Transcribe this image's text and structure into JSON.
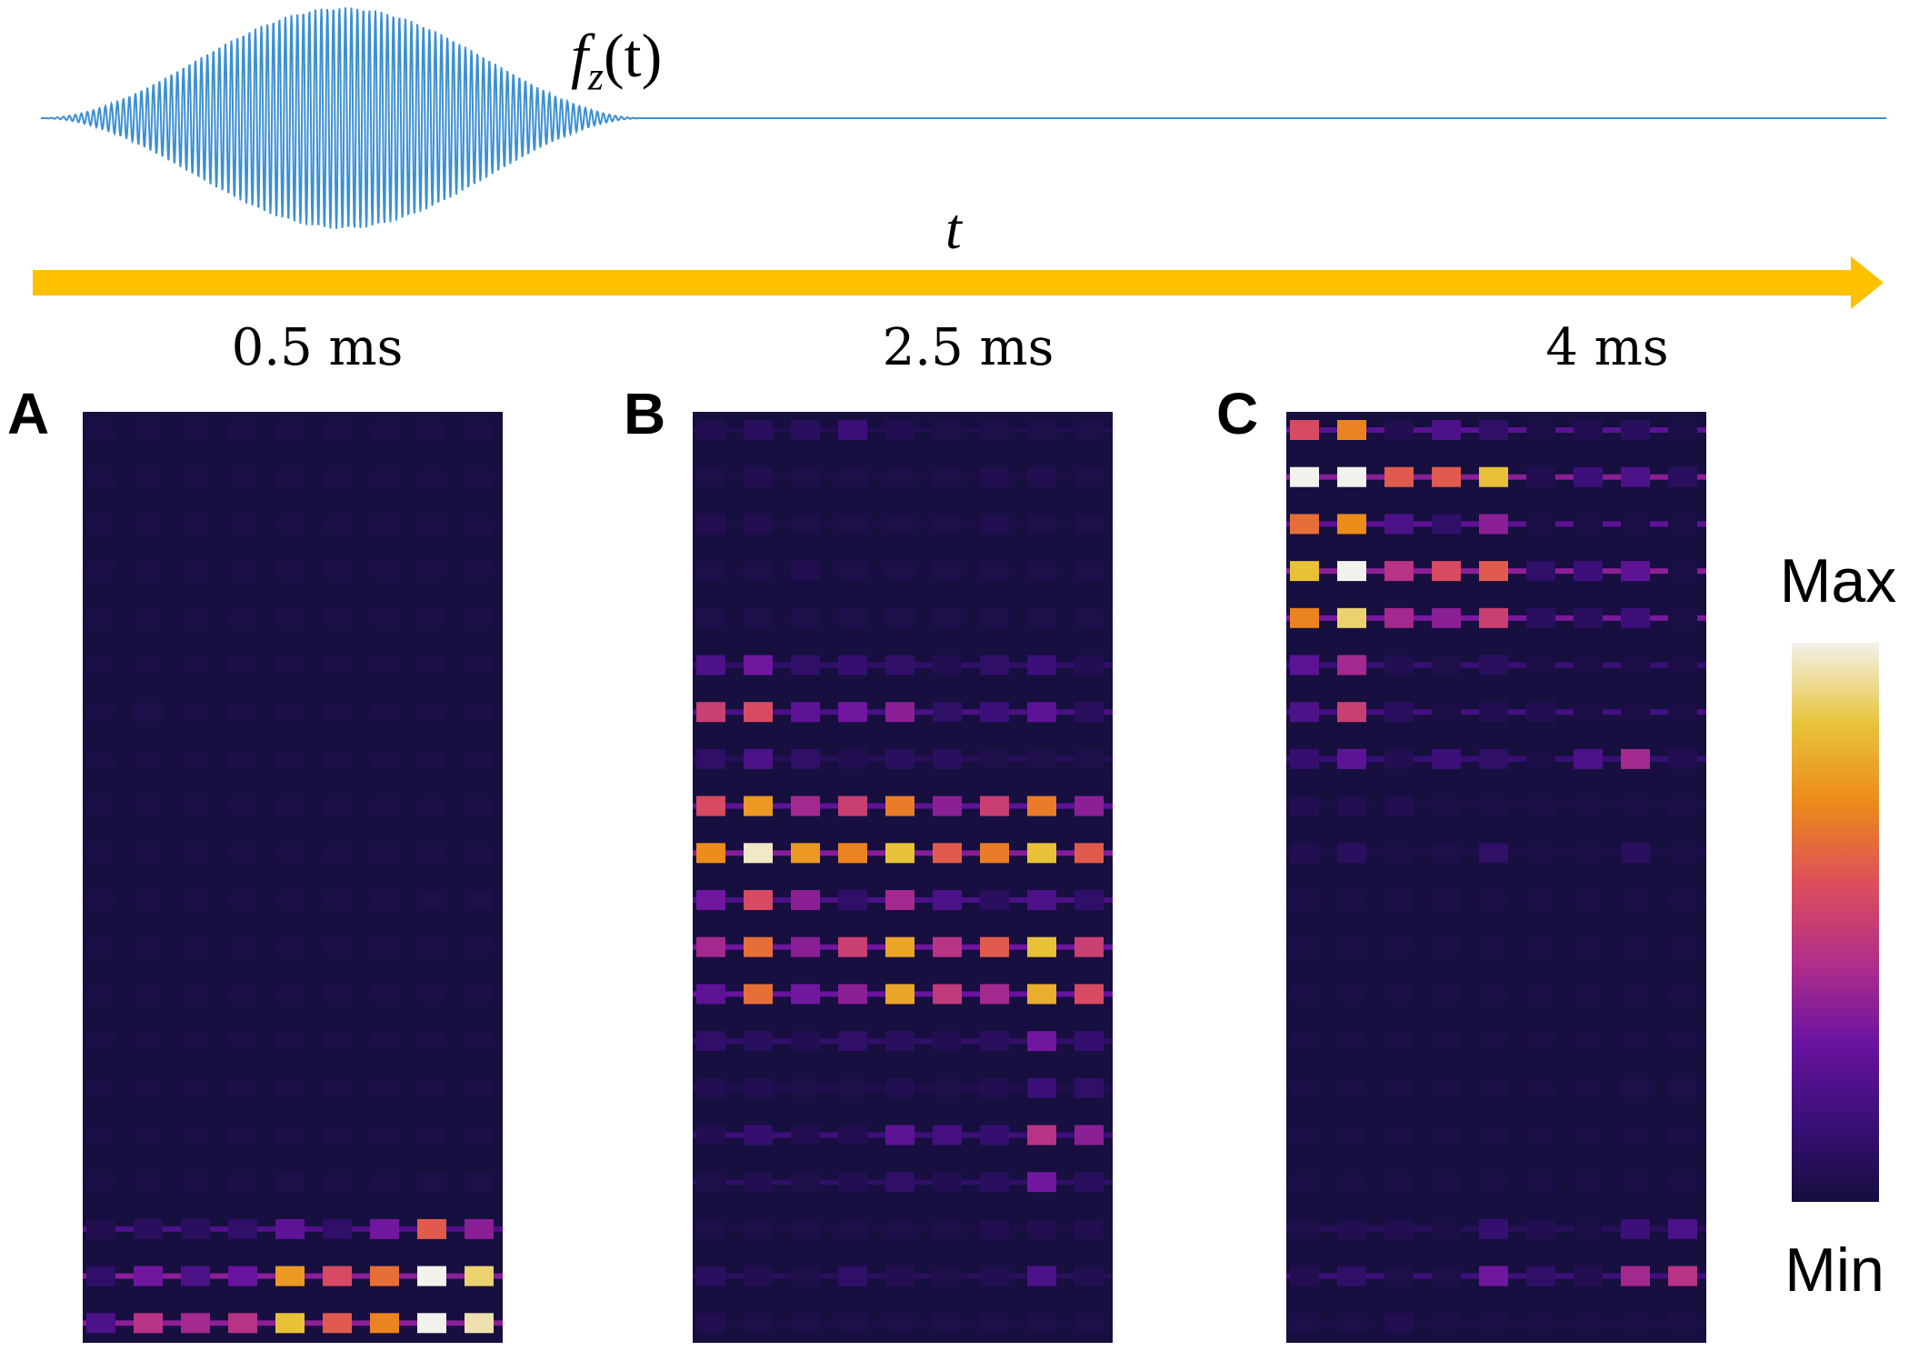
{
  "signal": {
    "label_base": "f",
    "label_sub": "z",
    "label_arg": "(t)",
    "color": "#3b8fd4"
  },
  "time_axis": {
    "label": "t",
    "color": "#ffc000"
  },
  "colorbar": {
    "max_label": "Max",
    "min_label": "Min",
    "colormap": [
      "#160e3e",
      "#3a0f78",
      "#6a13a0",
      "#b22e8a",
      "#dd4f5a",
      "#ec8a1a",
      "#e8c43a",
      "#f3f1ec"
    ]
  },
  "chart_data": [
    {
      "type": "heatmap",
      "panel": "A",
      "title": "0.5 ms",
      "rows": 20,
      "cols": 9,
      "values": [
        [
          0.02,
          0.02,
          0.02,
          0.02,
          0.02,
          0.02,
          0.02,
          0.02,
          0.02
        ],
        [
          0.02,
          0.02,
          0.02,
          0.02,
          0.02,
          0.02,
          0.02,
          0.02,
          0.02
        ],
        [
          0.02,
          0.02,
          0.02,
          0.02,
          0.02,
          0.02,
          0.02,
          0.02,
          0.02
        ],
        [
          0.02,
          0.02,
          0.02,
          0.02,
          0.02,
          0.02,
          0.02,
          0.02,
          0.02
        ],
        [
          0.02,
          0.02,
          0.02,
          0.02,
          0.02,
          0.02,
          0.02,
          0.02,
          0.02
        ],
        [
          0.02,
          0.02,
          0.02,
          0.02,
          0.02,
          0.02,
          0.02,
          0.02,
          0.02
        ],
        [
          0.02,
          0.03,
          0.02,
          0.02,
          0.02,
          0.02,
          0.02,
          0.02,
          0.02
        ],
        [
          0.02,
          0.02,
          0.02,
          0.02,
          0.02,
          0.02,
          0.02,
          0.02,
          0.02
        ],
        [
          0.02,
          0.02,
          0.02,
          0.02,
          0.02,
          0.02,
          0.02,
          0.02,
          0.02
        ],
        [
          0.02,
          0.02,
          0.02,
          0.02,
          0.02,
          0.02,
          0.02,
          0.02,
          0.02
        ],
        [
          0.02,
          0.02,
          0.02,
          0.02,
          0.02,
          0.02,
          0.02,
          0.03,
          0.03
        ],
        [
          0.02,
          0.02,
          0.02,
          0.02,
          0.02,
          0.02,
          0.02,
          0.02,
          0.02
        ],
        [
          0.02,
          0.02,
          0.02,
          0.02,
          0.02,
          0.02,
          0.02,
          0.02,
          0.02
        ],
        [
          0.02,
          0.02,
          0.02,
          0.02,
          0.02,
          0.02,
          0.02,
          0.02,
          0.02
        ],
        [
          0.02,
          0.02,
          0.02,
          0.02,
          0.02,
          0.02,
          0.02,
          0.02,
          0.02
        ],
        [
          0.02,
          0.02,
          0.02,
          0.02,
          0.02,
          0.02,
          0.02,
          0.02,
          0.02
        ],
        [
          0.02,
          0.02,
          0.02,
          0.02,
          0.03,
          0.02,
          0.02,
          0.03,
          0.03
        ],
        [
          0.05,
          0.08,
          0.08,
          0.1,
          0.25,
          0.1,
          0.3,
          0.6,
          0.35
        ],
        [
          0.1,
          0.3,
          0.2,
          0.28,
          0.75,
          0.55,
          0.65,
          1.0,
          0.9
        ],
        [
          0.2,
          0.45,
          0.4,
          0.45,
          0.85,
          0.6,
          0.7,
          1.0,
          0.95
        ]
      ]
    },
    {
      "type": "heatmap",
      "panel": "B",
      "title": "2.5 ms",
      "rows": 20,
      "cols": 9,
      "values": [
        [
          0.05,
          0.08,
          0.08,
          0.15,
          0.05,
          0.03,
          0.03,
          0.03,
          0.03
        ],
        [
          0.03,
          0.05,
          0.03,
          0.03,
          0.03,
          0.03,
          0.05,
          0.05,
          0.03
        ],
        [
          0.05,
          0.05,
          0.03,
          0.03,
          0.03,
          0.03,
          0.05,
          0.03,
          0.03
        ],
        [
          0.03,
          0.03,
          0.05,
          0.03,
          0.03,
          0.03,
          0.03,
          0.03,
          0.03
        ],
        [
          0.03,
          0.03,
          0.03,
          0.03,
          0.03,
          0.03,
          0.03,
          0.03,
          0.03
        ],
        [
          0.2,
          0.3,
          0.1,
          0.12,
          0.1,
          0.05,
          0.1,
          0.15,
          0.05
        ],
        [
          0.5,
          0.55,
          0.25,
          0.3,
          0.35,
          0.1,
          0.15,
          0.25,
          0.08
        ],
        [
          0.1,
          0.2,
          0.1,
          0.05,
          0.08,
          0.08,
          0.03,
          0.03,
          0.03
        ],
        [
          0.55,
          0.75,
          0.4,
          0.5,
          0.68,
          0.35,
          0.5,
          0.68,
          0.35
        ],
        [
          0.72,
          0.97,
          0.75,
          0.7,
          0.85,
          0.6,
          0.68,
          0.85,
          0.6
        ],
        [
          0.3,
          0.55,
          0.35,
          0.1,
          0.4,
          0.2,
          0.08,
          0.2,
          0.1
        ],
        [
          0.4,
          0.65,
          0.35,
          0.5,
          0.78,
          0.45,
          0.6,
          0.85,
          0.5
        ],
        [
          0.25,
          0.65,
          0.3,
          0.35,
          0.78,
          0.48,
          0.4,
          0.8,
          0.55
        ],
        [
          0.1,
          0.08,
          0.05,
          0.1,
          0.08,
          0.05,
          0.08,
          0.3,
          0.12
        ],
        [
          0.05,
          0.05,
          0.03,
          0.03,
          0.05,
          0.03,
          0.05,
          0.15,
          0.1
        ],
        [
          0.05,
          0.12,
          0.05,
          0.05,
          0.25,
          0.18,
          0.12,
          0.45,
          0.35
        ],
        [
          0.03,
          0.05,
          0.03,
          0.05,
          0.1,
          0.05,
          0.08,
          0.3,
          0.08
        ],
        [
          0.03,
          0.03,
          0.03,
          0.03,
          0.03,
          0.03,
          0.05,
          0.05,
          0.05
        ],
        [
          0.08,
          0.05,
          0.03,
          0.1,
          0.05,
          0.03,
          0.05,
          0.2,
          0.05
        ],
        [
          0.05,
          0.03,
          0.03,
          0.03,
          0.03,
          0.03,
          0.03,
          0.03,
          0.03
        ]
      ]
    },
    {
      "type": "heatmap",
      "panel": "C",
      "title": "4 ms",
      "rows": 20,
      "cols": 9,
      "values": [
        [
          0.55,
          0.7,
          0.05,
          0.2,
          0.1,
          0.02,
          0.05,
          0.08,
          0.02
        ],
        [
          1.0,
          1.0,
          0.6,
          0.6,
          0.85,
          0.05,
          0.15,
          0.2,
          0.08
        ],
        [
          0.65,
          0.72,
          0.2,
          0.1,
          0.35,
          0.02,
          0.02,
          0.02,
          0.02
        ],
        [
          0.85,
          1.0,
          0.45,
          0.55,
          0.6,
          0.1,
          0.15,
          0.25,
          0.02
        ],
        [
          0.7,
          0.9,
          0.4,
          0.35,
          0.5,
          0.08,
          0.08,
          0.15,
          0.02
        ],
        [
          0.25,
          0.4,
          0.05,
          0.03,
          0.08,
          0.02,
          0.02,
          0.02,
          0.02
        ],
        [
          0.2,
          0.5,
          0.08,
          0.02,
          0.05,
          0.05,
          0.02,
          0.02,
          0.02
        ],
        [
          0.12,
          0.25,
          0.05,
          0.15,
          0.1,
          0.02,
          0.2,
          0.4,
          0.05
        ],
        [
          0.05,
          0.05,
          0.05,
          0.02,
          0.02,
          0.02,
          0.02,
          0.02,
          0.02
        ],
        [
          0.05,
          0.08,
          0.02,
          0.03,
          0.1,
          0.02,
          0.02,
          0.08,
          0.02
        ],
        [
          0.02,
          0.02,
          0.02,
          0.02,
          0.02,
          0.02,
          0.02,
          0.02,
          0.02
        ],
        [
          0.02,
          0.02,
          0.02,
          0.02,
          0.02,
          0.02,
          0.02,
          0.02,
          0.02
        ],
        [
          0.02,
          0.02,
          0.02,
          0.02,
          0.02,
          0.02,
          0.02,
          0.02,
          0.02
        ],
        [
          0.02,
          0.02,
          0.02,
          0.02,
          0.02,
          0.02,
          0.02,
          0.02,
          0.02
        ],
        [
          0.02,
          0.02,
          0.02,
          0.02,
          0.02,
          0.02,
          0.02,
          0.03,
          0.03
        ],
        [
          0.02,
          0.02,
          0.02,
          0.02,
          0.02,
          0.02,
          0.02,
          0.02,
          0.02
        ],
        [
          0.02,
          0.02,
          0.02,
          0.02,
          0.02,
          0.02,
          0.02,
          0.02,
          0.02
        ],
        [
          0.03,
          0.05,
          0.05,
          0.02,
          0.12,
          0.05,
          0.02,
          0.15,
          0.2
        ],
        [
          0.05,
          0.1,
          0.03,
          0.03,
          0.3,
          0.1,
          0.05,
          0.4,
          0.45
        ],
        [
          0.03,
          0.03,
          0.05,
          0.02,
          0.02,
          0.02,
          0.02,
          0.02,
          0.02
        ]
      ]
    }
  ]
}
